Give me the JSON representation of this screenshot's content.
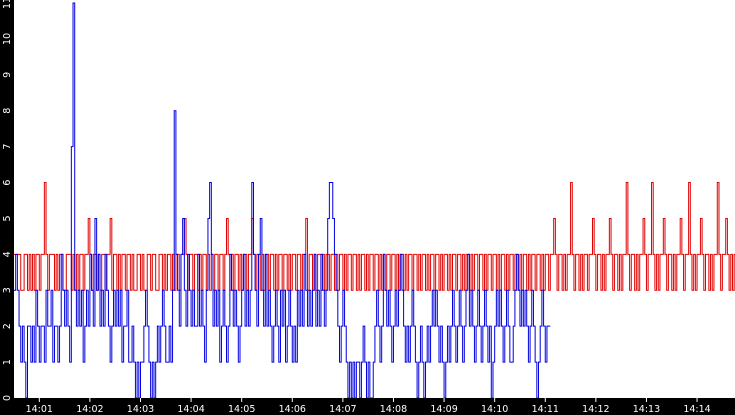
{
  "chart_data": {
    "type": "line",
    "title": "",
    "xlabel": "",
    "ylabel": "",
    "ylim": [
      0,
      11
    ],
    "y_ticks": [
      0,
      1,
      2,
      3,
      4,
      5,
      6,
      7,
      8,
      9,
      10,
      11
    ],
    "x_ticks": [
      "14:01",
      "14:02",
      "14:03",
      "14:04",
      "14:05",
      "14:06",
      "14:07",
      "14:08",
      "14:09",
      "14:10",
      "14:11",
      "14:12",
      "14:13",
      "14:14"
    ],
    "x_range": [
      "14:00:30",
      "14:14:45"
    ],
    "grid": false,
    "legend": "none",
    "colors": {
      "background": "#ffffff",
      "axis": "#000000",
      "tick_label": "#ffffff",
      "red_series": "#e00000",
      "blue_series": "#0000e0"
    },
    "series": [
      {
        "color": "#e00000",
        "step_seconds": 2,
        "values": [
          4,
          4,
          4,
          4,
          3,
          3,
          4,
          4,
          3,
          4,
          3,
          4,
          3,
          4,
          4,
          3,
          4,
          4,
          6,
          4,
          3,
          4,
          4,
          4,
          3,
          4,
          3,
          4,
          4,
          3,
          3,
          4,
          4,
          4,
          3,
          4,
          3,
          4,
          3,
          4,
          4,
          3,
          4,
          4,
          5,
          4,
          3,
          4,
          4,
          3,
          4,
          3,
          4,
          4,
          3,
          4,
          4,
          5,
          3,
          4,
          4,
          3,
          4,
          3,
          4,
          4,
          3,
          4,
          4,
          3,
          4,
          3,
          3,
          4,
          4,
          3,
          4,
          3,
          3,
          4,
          4,
          3,
          4,
          4,
          3,
          3,
          4,
          4,
          3,
          4,
          3,
          4,
          4,
          3,
          4,
          3,
          4,
          4,
          3,
          4,
          4,
          5,
          4,
          3,
          4,
          4,
          3,
          4,
          4,
          3,
          4,
          3,
          4,
          4,
          3,
          4,
          3,
          4,
          3,
          4,
          4,
          3,
          4,
          4,
          3,
          4,
          5,
          4,
          3,
          4,
          3,
          4,
          4,
          3,
          4,
          3,
          4,
          4,
          3,
          4,
          4,
          5,
          4,
          3,
          4,
          4,
          3,
          4,
          3,
          4,
          4,
          3,
          4,
          4,
          3,
          4,
          3,
          4,
          4,
          3,
          4,
          4,
          3,
          4,
          3,
          4,
          4,
          3,
          4,
          4,
          3,
          4,
          4,
          5,
          3,
          4,
          4,
          3,
          4,
          3,
          4,
          4,
          3,
          4,
          3,
          4,
          4,
          3,
          4,
          4,
          3,
          4,
          3,
          4,
          4,
          3,
          4,
          3,
          4,
          4,
          3,
          4,
          4,
          3,
          4,
          3,
          4,
          4,
          3,
          4,
          3,
          4,
          4,
          3,
          4,
          4,
          3,
          4,
          3,
          4,
          3,
          4,
          4,
          3,
          4,
          4,
          3,
          4,
          3,
          4,
          4,
          3,
          4,
          3,
          4,
          4,
          3,
          4,
          4,
          3,
          4,
          3,
          4,
          4,
          3,
          4,
          3,
          4,
          4,
          3,
          4,
          4,
          3,
          4,
          3,
          4,
          4,
          3,
          4,
          3,
          4,
          4,
          3,
          4,
          4,
          3,
          4,
          3,
          4,
          4,
          3,
          4,
          3,
          4,
          4,
          3,
          4,
          4,
          3,
          4,
          3,
          4,
          4,
          3,
          4,
          4,
          3,
          4,
          3,
          4,
          4,
          3,
          4,
          3,
          4,
          4,
          3,
          4,
          4,
          3,
          4,
          3,
          4,
          4,
          3,
          4,
          3,
          4,
          4,
          3,
          4,
          4,
          3,
          4,
          3,
          4,
          4,
          3,
          4,
          4,
          5,
          4,
          3,
          4,
          4,
          3,
          4,
          3,
          4,
          4,
          6,
          4,
          3,
          4,
          4,
          3,
          4,
          3,
          4,
          4,
          3,
          4,
          4,
          5,
          4,
          3,
          4,
          4,
          3,
          4,
          3,
          4,
          4,
          5,
          4,
          3,
          4,
          4,
          3,
          4,
          3,
          4,
          4,
          6,
          4,
          3,
          4,
          4,
          3,
          4,
          3,
          4,
          4,
          5,
          4,
          3,
          4,
          4,
          6,
          4,
          3,
          4,
          3,
          4,
          4,
          5,
          4,
          3,
          4,
          4,
          3,
          4,
          3,
          4,
          4,
          5,
          4,
          3,
          4,
          4,
          6,
          4,
          3,
          4,
          3,
          4,
          4,
          5,
          4,
          3,
          4,
          4,
          3,
          4,
          3,
          4,
          4,
          6,
          4,
          3,
          4,
          4,
          5,
          4,
          3,
          4,
          3,
          4,
          4,
          3,
          4,
          4,
          3,
          4,
          3,
          4
        ]
      },
      {
        "color": "#0000e0",
        "step_seconds": 2,
        "values": [
          3,
          4,
          3,
          2,
          1,
          2,
          1,
          0,
          2,
          2,
          1,
          2,
          1,
          3,
          2,
          1,
          2,
          2,
          1,
          3,
          2,
          2,
          3,
          1,
          2,
          2,
          1,
          2,
          4,
          3,
          2,
          3,
          2,
          1,
          7,
          11,
          3,
          2,
          3,
          2,
          3,
          1,
          2,
          3,
          2,
          4,
          3,
          2,
          5,
          3,
          4,
          2,
          3,
          2,
          4,
          3,
          2,
          1,
          2,
          3,
          2,
          3,
          2,
          3,
          1,
          2,
          2,
          3,
          1,
          1,
          2,
          1,
          0,
          1,
          0,
          1,
          1,
          2,
          3,
          2,
          1,
          0,
          1,
          0,
          1,
          2,
          1,
          2,
          3,
          2,
          1,
          1,
          2,
          1,
          3,
          8,
          4,
          3,
          2,
          4,
          5,
          3,
          2,
          4,
          3,
          2,
          3,
          2,
          2,
          4,
          2,
          3,
          2,
          1,
          3,
          5,
          6,
          4,
          2,
          3,
          2,
          3,
          1,
          2,
          3,
          2,
          1,
          2,
          4,
          3,
          2,
          3,
          2,
          1,
          2,
          3,
          4,
          2,
          3,
          2,
          3,
          6,
          4,
          3,
          2,
          4,
          5,
          3,
          2,
          4,
          2,
          3,
          2,
          1,
          2,
          3,
          2,
          1,
          3,
          2,
          3,
          1,
          2,
          3,
          2,
          1,
          2,
          1,
          3,
          2,
          3,
          2,
          4,
          3,
          2,
          3,
          2,
          3,
          4,
          2,
          3,
          2,
          4,
          3,
          2,
          3,
          5,
          6,
          6,
          5,
          4,
          3,
          2,
          1,
          2,
          3,
          2,
          1,
          0,
          1,
          0,
          1,
          0,
          1,
          1,
          0,
          1,
          2,
          1,
          0,
          1,
          0,
          0,
          1,
          2,
          3,
          2,
          1,
          2,
          4,
          3,
          2,
          3,
          2,
          1,
          2,
          3,
          2,
          3,
          4,
          3,
          2,
          1,
          2,
          1,
          2,
          3,
          2,
          1,
          0,
          1,
          2,
          1,
          0,
          1,
          2,
          1,
          2,
          3,
          2,
          3,
          2,
          1,
          2,
          1,
          0,
          1,
          2,
          1,
          2,
          3,
          2,
          1,
          2,
          3,
          2,
          1,
          2,
          3,
          4,
          2,
          3,
          2,
          1,
          2,
          3,
          2,
          1,
          2,
          3,
          2,
          1,
          2,
          0,
          1,
          2,
          3,
          2,
          3,
          2,
          1,
          2,
          3,
          2,
          1,
          1,
          2,
          3,
          4,
          3,
          2,
          3,
          2,
          3,
          2,
          1,
          2,
          3,
          2,
          1,
          0,
          1,
          2,
          3,
          2,
          1,
          2,
          2
        ]
      }
    ]
  }
}
